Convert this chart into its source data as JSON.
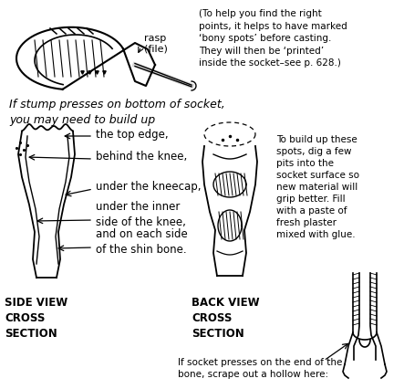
{
  "bg_color": "#ffffff",
  "texts": {
    "rasp_label": "rasp\n(file)",
    "top_note": "(To help you find the right\npoints, it helps to have marked\n‘bony spots’ before casting.\nThey will then be ‘printed’\ninside the socket–see p. 628.)",
    "build_up_text": "If stump presses on bottom of socket,\nyou may need to build up",
    "label1": "the top edge,",
    "label2": "behind the knee,",
    "label3": "under the kneecap,",
    "label4": "under the inner\nside of the knee,",
    "label5": "and on each side\nof the shin bone.",
    "side_view": "SIDE VIEW\nCROSS\nSECTION",
    "back_view": "BACK VIEW\nCROSS\nSECTION",
    "build_note": "To build up these\nspots, dig a few\npits into the\nsocket surface so\nnew material will\ngrip better. Fill\nwith a paste of\nfresh plaster\nmixed with glue.",
    "bottom_note": "If socket presses on the end of the\nbone, scrape out a hollow here:"
  }
}
